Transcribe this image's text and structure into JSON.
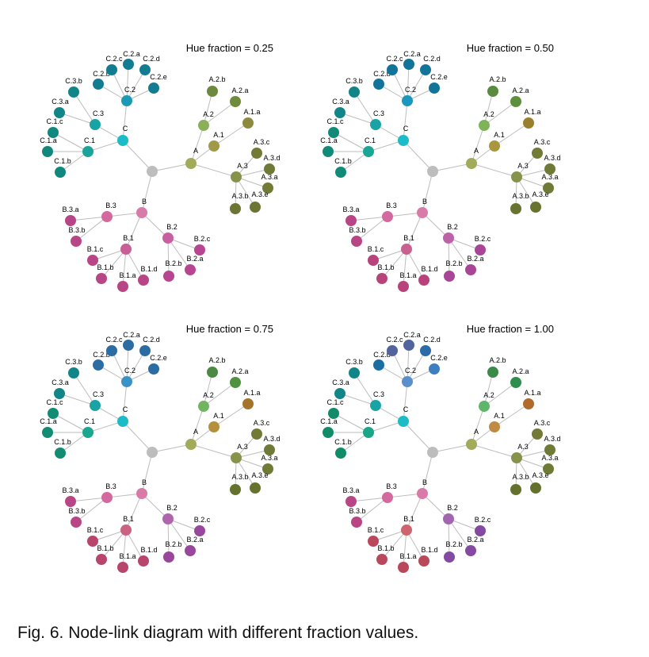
{
  "caption": "Fig. 6. Node-link diagram with different fraction values.",
  "panels": [
    {
      "title": "Hue fraction = 0.25",
      "colors": {
        "root": "#bdbdbd",
        "A": "#a2ab5a",
        "A.1": "#a09a48",
        "A.2": "#8ab158",
        "A.3": "#87934a",
        "A.1.a": "#8d8a3f",
        "A.2.a": "#6f8c3c",
        "A.2.b": "#6c8a3d",
        "A.3.a": "#737a36",
        "A.3.b": "#6c7534",
        "A.3.c": "#737a36",
        "A.3.d": "#6e7a35",
        "A.3.e": "#6c7534",
        "B": "#d97ba8",
        "B.1": "#c85f96",
        "B.2": "#c85fa0",
        "B.3": "#d4699f",
        "B.1.a": "#b84586",
        "B.1.b": "#b84586",
        "B.1.c": "#b84586",
        "B.1.d": "#b84586",
        "B.2.a": "#b84592",
        "B.2.b": "#b84592",
        "B.2.c": "#b84592",
        "B.3.a": "#b84586",
        "B.3.b": "#b84586",
        "C": "#1bbcc7",
        "C.1": "#1aa39b",
        "C.2": "#1a9ab5",
        "C.3": "#1aa3a5",
        "C.1.a": "#12877d",
        "C.1.b": "#12877d",
        "C.1.c": "#12877d",
        "C.2.a": "#127c91",
        "C.2.b": "#127c91",
        "C.2.c": "#127c91",
        "C.2.d": "#127c91",
        "C.2.e": "#127c91",
        "C.3.a": "#128588",
        "C.3.b": "#128588"
      }
    },
    {
      "title": "Hue fraction = 0.50",
      "colors": {
        "root": "#bdbdbd",
        "A": "#a2ab5a",
        "A.1": "#a8973f",
        "A.2": "#7fb35a",
        "A.3": "#87934a",
        "A.1.a": "#9a7f2e",
        "A.2.a": "#5e8f3d",
        "A.2.b": "#5a8a3f",
        "A.3.a": "#6e7a35",
        "A.3.b": "#67732f",
        "A.3.c": "#737a36",
        "A.3.d": "#6e7a35",
        "A.3.e": "#67732f",
        "B": "#d97ba8",
        "B.1": "#c9608e",
        "B.2": "#bd62a7",
        "B.3": "#d4699f",
        "B.1.a": "#b8437a",
        "B.1.b": "#b8437a",
        "B.1.c": "#b8437a",
        "B.1.d": "#b8437a",
        "B.2.a": "#a84597",
        "B.2.b": "#a84597",
        "B.2.c": "#a84597",
        "B.3.a": "#b84586",
        "B.3.b": "#b84586",
        "C": "#1bbcc7",
        "C.1": "#1aa597",
        "C.2": "#1a97bd",
        "C.3": "#1aa3a5",
        "C.1.a": "#128a78",
        "C.1.b": "#128a78",
        "C.1.c": "#128a78",
        "C.2.a": "#127499",
        "C.2.b": "#127499",
        "C.2.c": "#127499",
        "C.2.d": "#127499",
        "C.2.e": "#127499",
        "C.3.a": "#128588",
        "C.3.b": "#128588"
      }
    },
    {
      "title": "Hue fraction = 0.75",
      "colors": {
        "root": "#bdbdbd",
        "A": "#a2ab5a",
        "A.1": "#b4903a",
        "A.2": "#72b560",
        "A.3": "#87934a",
        "A.1.a": "#a5742a",
        "A.2.a": "#4f9240",
        "A.2.b": "#4a8a42",
        "A.3.a": "#6e7a35",
        "A.3.b": "#65722e",
        "A.3.c": "#737a36",
        "A.3.d": "#6e7a35",
        "A.3.e": "#65722e",
        "B": "#d97ba8",
        "B.1": "#cb6282",
        "B.2": "#b064ac",
        "B.3": "#d4699f",
        "B.1.a": "#b8456c",
        "B.1.b": "#b8456c",
        "B.1.c": "#b8456c",
        "B.1.d": "#b8456c",
        "B.2.a": "#98479c",
        "B.2.b": "#98479c",
        "B.2.c": "#98479c",
        "B.3.a": "#b84586",
        "B.3.b": "#b84586",
        "C": "#1bbcc7",
        "C.1": "#1aa690",
        "C.2": "#3a93c6",
        "C.3": "#1aa3a5",
        "C.1.a": "#128c72",
        "C.1.b": "#128c72",
        "C.1.c": "#128c72",
        "C.2.a": "#2b6da3",
        "C.2.b": "#2b6da3",
        "C.2.c": "#2b6da3",
        "C.2.d": "#2b6da3",
        "C.2.e": "#2b6da3",
        "C.3.a": "#128588",
        "C.3.b": "#128588"
      }
    },
    {
      "title": "Hue fraction = 1.00",
      "colors": {
        "root": "#bdbdbd",
        "A": "#a2ab5a",
        "A.1": "#c08a44",
        "A.2": "#5fb56a",
        "A.3": "#87934a",
        "A.1.a": "#b06a2c",
        "A.2.a": "#2e8e4e",
        "A.2.b": "#3a8a48",
        "A.3.a": "#6e7a35",
        "A.3.b": "#63712d",
        "A.3.c": "#737a36",
        "A.3.d": "#6e7a35",
        "A.3.e": "#63712d",
        "B": "#d97ba8",
        "B.1": "#cd6470",
        "B.2": "#a266b0",
        "B.3": "#d4699f",
        "B.1.a": "#b8485a",
        "B.1.b": "#b8485a",
        "B.1.c": "#b8485a",
        "B.1.d": "#b8485a",
        "B.2.a": "#8449a0",
        "B.2.b": "#8449a0",
        "B.2.c": "#8449a0",
        "B.3.a": "#b84586",
        "B.3.b": "#b84586",
        "C": "#1bbcc7",
        "C.1": "#1aa687",
        "C.2": "#5a8fcc",
        "C.3": "#1aa3a5",
        "C.1.a": "#128c68",
        "C.1.b": "#128c68",
        "C.1.c": "#128c68",
        "C.2.a": "#52649c",
        "C.2.b": "#1a6ea0",
        "C.2.c": "#52649c",
        "C.2.d": "#2b6ba8",
        "C.2.e": "#3f7fc0",
        "C.3.a": "#128588",
        "C.3.b": "#128588"
      }
    }
  ]
}
